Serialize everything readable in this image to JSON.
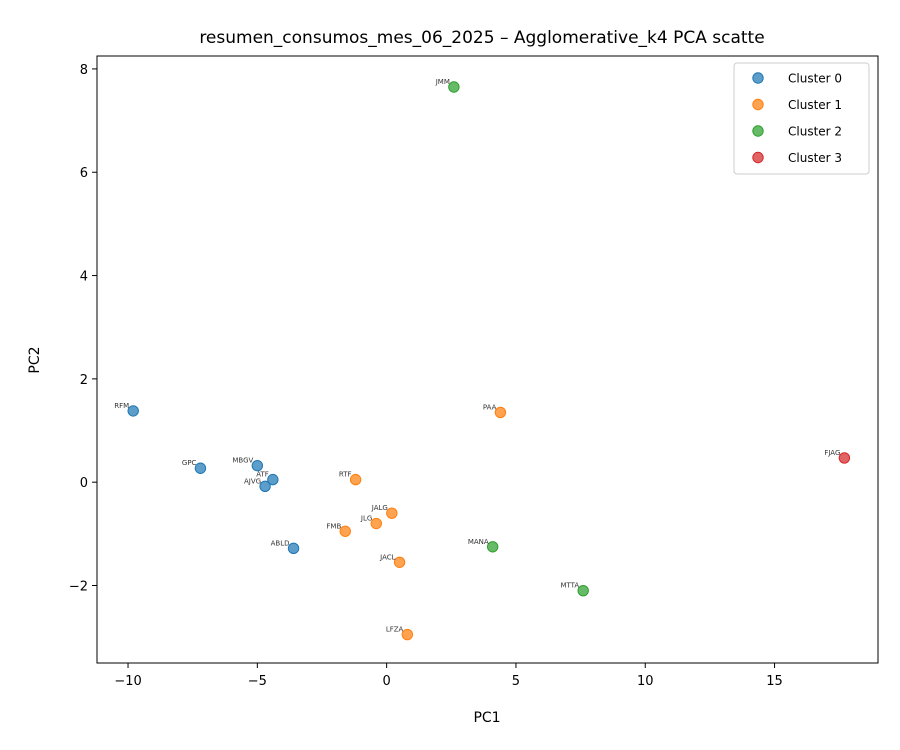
{
  "chart_data": {
    "type": "scatter",
    "title": "resumen_consumos_mes_06_2025 – Agglomerative_k4 PCA scatte",
    "xlabel": "PC1",
    "ylabel": "PC2",
    "xlim": [
      -11.2,
      19.0
    ],
    "ylim": [
      -3.5,
      8.25
    ],
    "xticks": [
      -10,
      -5,
      0,
      5,
      10,
      15
    ],
    "yticks": [
      -2,
      0,
      2,
      4,
      6,
      8
    ],
    "xtick_labels": [
      "−10",
      "−5",
      "0",
      "5",
      "10",
      "15"
    ],
    "ytick_labels": [
      "−2",
      "0",
      "2",
      "4",
      "6",
      "8"
    ],
    "grid": false,
    "legend_position": "top-right",
    "series": [
      {
        "name": "Cluster 0",
        "color": "#1f77b4",
        "points": [
          {
            "label": "RFM",
            "x": -9.8,
            "y": 1.38
          },
          {
            "label": "GPC",
            "x": -7.2,
            "y": 0.27
          },
          {
            "label": "MBGV",
            "x": -5.0,
            "y": 0.32
          },
          {
            "label": "ATF",
            "x": -4.4,
            "y": 0.05
          },
          {
            "label": "AJVG",
            "x": -4.7,
            "y": -0.08
          },
          {
            "label": "ABLD",
            "x": -3.6,
            "y": -1.28
          }
        ]
      },
      {
        "name": "Cluster 1",
        "color": "#ff7f0e",
        "points": [
          {
            "label": "PAA",
            "x": 4.4,
            "y": 1.35
          },
          {
            "label": "RTF",
            "x": -1.2,
            "y": 0.05
          },
          {
            "label": "JALG",
            "x": 0.2,
            "y": -0.6
          },
          {
            "label": "JLG",
            "x": -0.4,
            "y": -0.8
          },
          {
            "label": "FMB",
            "x": -1.6,
            "y": -0.95
          },
          {
            "label": "JACL",
            "x": 0.5,
            "y": -1.55
          },
          {
            "label": "LFZA",
            "x": 0.8,
            "y": -2.95
          }
        ]
      },
      {
        "name": "Cluster 2",
        "color": "#2ca02c",
        "points": [
          {
            "label": "JMM",
            "x": 2.6,
            "y": 7.65
          },
          {
            "label": "MANA",
            "x": 4.1,
            "y": -1.25
          },
          {
            "label": "MTTA",
            "x": 7.6,
            "y": -2.1
          }
        ]
      },
      {
        "name": "Cluster 3",
        "color": "#d62728",
        "points": [
          {
            "label": "FJAG",
            "x": 17.7,
            "y": 0.47
          }
        ]
      }
    ]
  }
}
